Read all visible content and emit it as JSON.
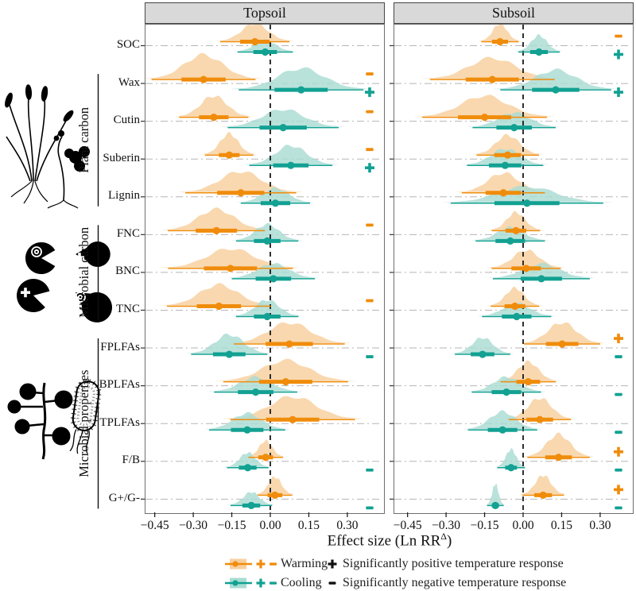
{
  "panels": [
    "Topsoil",
    "Subsoil"
  ],
  "axis": {
    "tick_values": [
      -0.45,
      -0.3,
      -0.15,
      0.0,
      0.15,
      0.3
    ],
    "tick_labels": [
      "−0.45",
      "−0.30",
      "−0.15",
      "0.00",
      "0.15",
      "0.30"
    ],
    "label_prefix": "Effect size (Ln RR",
    "label_sup": "Δ",
    "label_suffix": ")",
    "xmin": -0.52,
    "xmax": 0.45
  },
  "groups": [
    {
      "label": "Plant carbon",
      "from": 1,
      "to": 4
    },
    {
      "label": "Microbial carbon",
      "from": 5,
      "to": 7
    },
    {
      "label": "Microbial properties",
      "from": 8,
      "to": 12
    }
  ],
  "legend": {
    "warming": "Warming",
    "cooling": "Cooling",
    "sig_pos": "Significantly positive temperature response",
    "sig_neg": "Significantly negative temperature response"
  },
  "colors": {
    "warming": "#F08C0B",
    "warming_fill": "#F8CF9E",
    "cooling": "#12A192",
    "cooling_fill": "#A9DCD3",
    "header_bg": "#D9D9D9",
    "grid": "#b5b5b5",
    "zero_line": "#1a1a1a"
  },
  "chart_data": {
    "type": "ridgeline",
    "xlabel": "Effect size (Ln RR Δ)",
    "x_ticks": [
      -0.45,
      -0.3,
      -0.15,
      0.0,
      0.15,
      0.3
    ],
    "panels": [
      "Topsoil",
      "Subsoil"
    ],
    "series_names": [
      "Warming",
      "Cooling"
    ],
    "legend_position": "bottom",
    "zero_reference_line": 0.0,
    "sig_key": {
      "plus": "significantly positive",
      "minus": "significantly negative"
    },
    "rows": [
      {
        "label": "SOC",
        "topsoil": {
          "warming": {
            "mean": -0.06,
            "sd": 0.05,
            "peak": 22,
            "sig": ""
          },
          "cooling": {
            "mean": -0.02,
            "sd": 0.04,
            "peak": 14,
            "sig": ""
          }
        },
        "subsoil": {
          "warming": {
            "mean": -0.09,
            "sd": 0.027,
            "peak": 22,
            "sig": "-"
          },
          "cooling": {
            "mean": 0.062,
            "sd": 0.03,
            "peak": 20,
            "sig": "+"
          }
        }
      },
      {
        "label": "Wax",
        "topsoil": {
          "warming": {
            "mean": -0.26,
            "sd": 0.075,
            "peak": 30,
            "sig": "-"
          },
          "cooling": {
            "mean": 0.12,
            "sd": 0.09,
            "peak": 26,
            "sig": "+"
          }
        },
        "subsoil": {
          "warming": {
            "mean": -0.12,
            "sd": 0.09,
            "peak": 26,
            "sig": ""
          },
          "cooling": {
            "mean": 0.127,
            "sd": 0.08,
            "peak": 24,
            "sig": "+"
          }
        }
      },
      {
        "label": "Cutin",
        "topsoil": {
          "warming": {
            "mean": -0.22,
            "sd": 0.05,
            "peak": 26,
            "sig": "-"
          },
          "cooling": {
            "mean": 0.05,
            "sd": 0.08,
            "peak": 22,
            "sig": ""
          }
        },
        "subsoil": {
          "warming": {
            "mean": -0.15,
            "sd": 0.09,
            "peak": 26,
            "sig": ""
          },
          "cooling": {
            "mean": -0.035,
            "sd": 0.06,
            "peak": 18,
            "sig": ""
          }
        }
      },
      {
        "label": "Suberin",
        "topsoil": {
          "warming": {
            "mean": -0.16,
            "sd": 0.035,
            "peak": 26,
            "sig": "-"
          },
          "cooling": {
            "mean": 0.08,
            "sd": 0.06,
            "peak": 24,
            "sig": "+"
          }
        },
        "subsoil": {
          "warming": {
            "mean": -0.06,
            "sd": 0.045,
            "peak": 24,
            "sig": ""
          },
          "cooling": {
            "mean": -0.07,
            "sd": 0.055,
            "peak": 20,
            "sig": ""
          }
        }
      },
      {
        "label": "Lignin",
        "topsoil": {
          "warming": {
            "mean": -0.115,
            "sd": 0.08,
            "peak": 26,
            "sig": ""
          },
          "cooling": {
            "mean": 0.02,
            "sd": 0.05,
            "peak": 18,
            "sig": ""
          }
        },
        "subsoil": {
          "warming": {
            "mean": -0.077,
            "sd": 0.06,
            "peak": 24,
            "sig": ""
          },
          "cooling": {
            "mean": 0.015,
            "sd": 0.11,
            "peak": 20,
            "sig": ""
          }
        }
      },
      {
        "label": "FNC",
        "topsoil": {
          "warming": {
            "mean": -0.21,
            "sd": 0.07,
            "peak": 26,
            "sig": "-"
          },
          "cooling": {
            "mean": -0.012,
            "sd": 0.045,
            "peak": 20,
            "sig": ""
          }
        },
        "subsoil": {
          "warming": {
            "mean": -0.028,
            "sd": 0.035,
            "peak": 22,
            "sig": ""
          },
          "cooling": {
            "mean": -0.05,
            "sd": 0.05,
            "peak": 16,
            "sig": ""
          }
        }
      },
      {
        "label": "BNC",
        "topsoil": {
          "warming": {
            "mean": -0.155,
            "sd": 0.09,
            "peak": 24,
            "sig": ""
          },
          "cooling": {
            "mean": 0.012,
            "sd": 0.06,
            "peak": 18,
            "sig": ""
          }
        },
        "subsoil": {
          "warming": {
            "mean": 0.012,
            "sd": 0.05,
            "peak": 22,
            "sig": ""
          },
          "cooling": {
            "mean": 0.071,
            "sd": 0.07,
            "peak": 18,
            "sig": ""
          }
        }
      },
      {
        "label": "TNC",
        "topsoil": {
          "warming": {
            "mean": -0.2,
            "sd": 0.075,
            "peak": 26,
            "sig": "-"
          },
          "cooling": {
            "mean": -0.012,
            "sd": 0.045,
            "peak": 20,
            "sig": ""
          }
        },
        "subsoil": {
          "warming": {
            "mean": -0.032,
            "sd": 0.035,
            "peak": 22,
            "sig": ""
          },
          "cooling": {
            "mean": -0.025,
            "sd": 0.05,
            "peak": 16,
            "sig": ""
          }
        }
      },
      {
        "label": "FPLFAs",
        "topsoil": {
          "warming": {
            "mean": 0.074,
            "sd": 0.08,
            "peak": 26,
            "sig": ""
          },
          "cooling": {
            "mean": -0.16,
            "sd": 0.055,
            "peak": 24,
            "sig": "-"
          }
        },
        "subsoil": {
          "warming": {
            "mean": 0.152,
            "sd": 0.055,
            "peak": 26,
            "sig": "+"
          },
          "cooling": {
            "mean": -0.158,
            "sd": 0.04,
            "peak": 20,
            "sig": "-"
          }
        }
      },
      {
        "label": "BPLFAs",
        "topsoil": {
          "warming": {
            "mean": 0.06,
            "sd": 0.09,
            "peak": 26,
            "sig": ""
          },
          "cooling": {
            "mean": -0.057,
            "sd": 0.06,
            "peak": 18,
            "sig": ""
          }
        },
        "subsoil": {
          "warming": {
            "mean": 0.02,
            "sd": 0.04,
            "peak": 24,
            "sig": ""
          },
          "cooling": {
            "mean": -0.065,
            "sd": 0.05,
            "peak": 18,
            "sig": "-"
          }
        }
      },
      {
        "label": "TPLFAs",
        "topsoil": {
          "warming": {
            "mean": 0.087,
            "sd": 0.09,
            "peak": 28,
            "sig": ""
          },
          "cooling": {
            "mean": -0.09,
            "sd": 0.055,
            "peak": 20,
            "sig": ""
          }
        },
        "subsoil": {
          "warming": {
            "mean": 0.065,
            "sd": 0.045,
            "peak": 26,
            "sig": ""
          },
          "cooling": {
            "mean": -0.08,
            "sd": 0.05,
            "peak": 22,
            "sig": "-"
          }
        }
      },
      {
        "label": "F/B",
        "topsoil": {
          "warming": {
            "mean": -0.018,
            "sd": 0.025,
            "peak": 20,
            "sig": ""
          },
          "cooling": {
            "mean": -0.088,
            "sd": 0.03,
            "peak": 18,
            "sig": "-"
          }
        },
        "subsoil": {
          "warming": {
            "mean": 0.138,
            "sd": 0.045,
            "peak": 28,
            "sig": "+"
          },
          "cooling": {
            "mean": -0.047,
            "sd": 0.02,
            "peak": 22,
            "sig": "-"
          }
        }
      },
      {
        "label": "G+/G-",
        "topsoil": {
          "warming": {
            "mean": 0.018,
            "sd": 0.025,
            "peak": 22,
            "sig": ""
          },
          "cooling": {
            "mean": -0.074,
            "sd": 0.03,
            "peak": 16,
            "sig": "-"
          }
        },
        "subsoil": {
          "warming": {
            "mean": 0.078,
            "sd": 0.03,
            "peak": 24,
            "sig": "+"
          },
          "cooling": {
            "mean": -0.108,
            "sd": 0.012,
            "peak": 26,
            "sig": "-"
          }
        }
      }
    ]
  }
}
